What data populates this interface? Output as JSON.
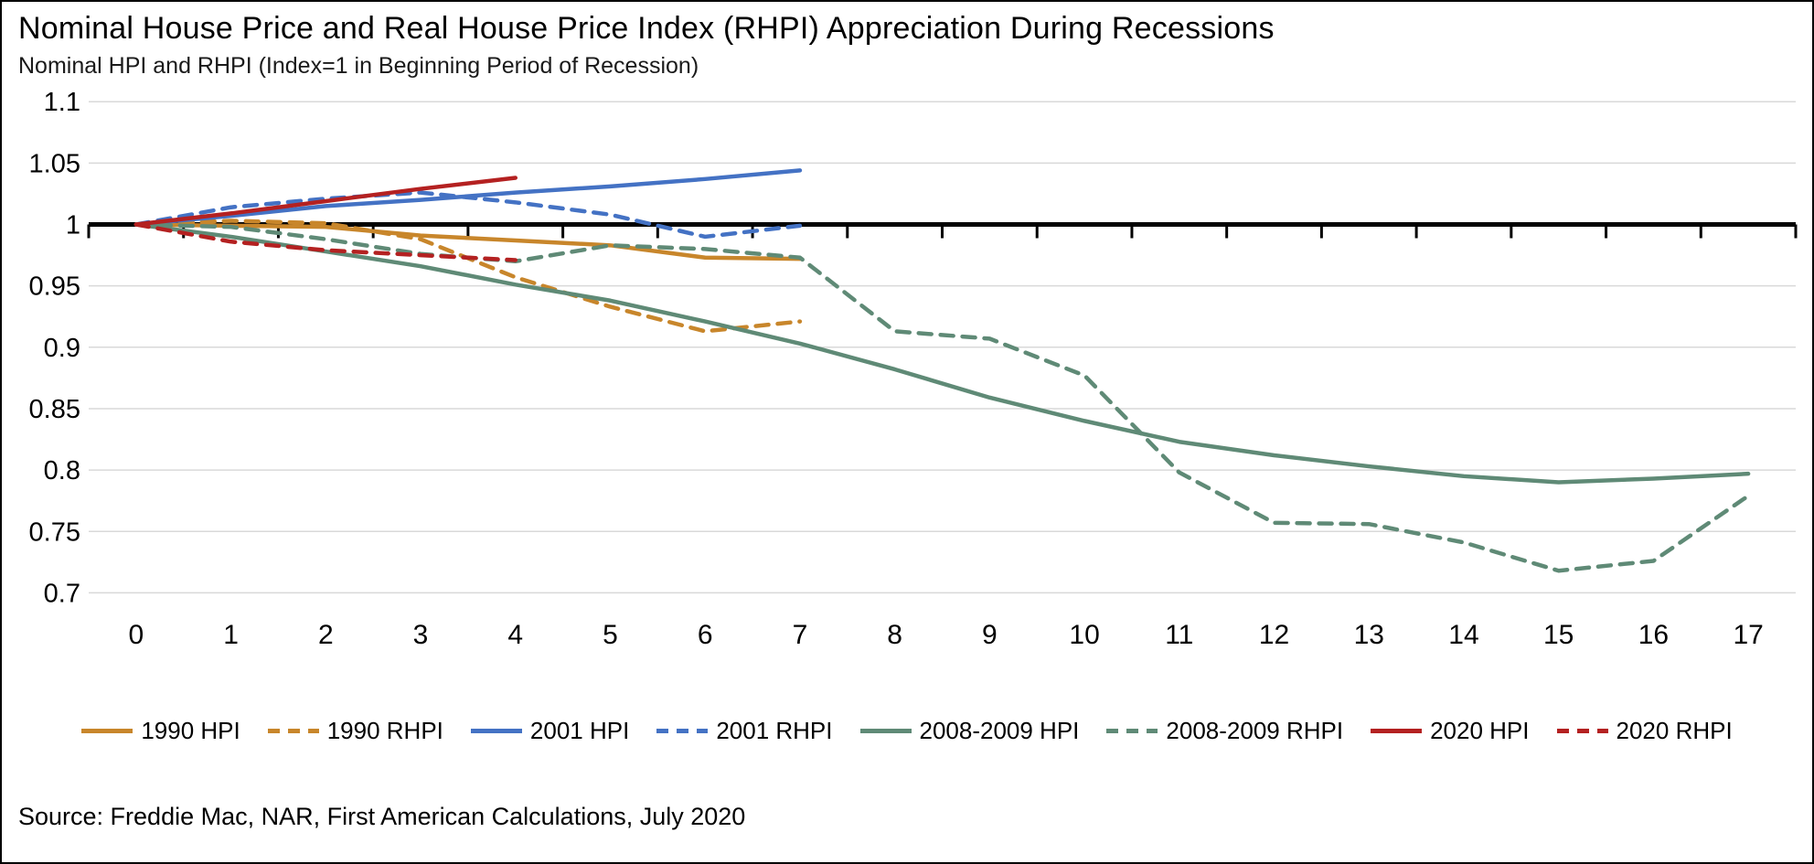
{
  "header": {
    "title": "Nominal House Price and Real House Price Index (RHPI) Appreciation During Recessions",
    "subtitle": "Nominal HPI and RHPI (Index=1 in Beginning Period of Recession)"
  },
  "footer": {
    "source": "Source: Freddie Mac, NAR, First American Calculations, July 2020"
  },
  "chart_data": {
    "type": "line",
    "title": "Nominal House Price and Real House Price Index (RHPI) Appreciation During Recessions",
    "subtitle": "Nominal HPI and RHPI (Index=1 in Beginning Period of Recession)",
    "xlabel": "",
    "ylabel": "",
    "x": [
      0,
      1,
      2,
      3,
      4,
      5,
      6,
      7,
      8,
      9,
      10,
      11,
      12,
      13,
      14,
      15,
      16,
      17
    ],
    "x_tick_labels": [
      "0",
      "1",
      "2",
      "3",
      "4",
      "5",
      "6",
      "7",
      "8",
      "9",
      "10",
      "11",
      "12",
      "13",
      "14",
      "15",
      "16",
      "17"
    ],
    "ylim": [
      0.7,
      1.1
    ],
    "yticks": [
      1.1,
      1.05,
      1.0,
      0.95,
      0.9,
      0.85,
      0.8,
      0.75,
      0.7
    ],
    "ytick_labels": [
      "1.1",
      "1.05",
      "1",
      "0.95",
      "0.9",
      "0.85",
      "0.8",
      "0.75",
      "0.7"
    ],
    "baseline_value": 1,
    "grid": "horizontal",
    "gridline_color": "#d9d9d9",
    "axis_color": "#000000",
    "legend_position": "bottom-center",
    "series": [
      {
        "name": "1990 HPI",
        "color": "#C8862B",
        "dash": "solid",
        "values": [
          1,
          0.999,
          0.998,
          0.991,
          0.987,
          0.983,
          0.973,
          0.972
        ]
      },
      {
        "name": "1990 RHPI",
        "color": "#C8862B",
        "dash": "dashed",
        "values": [
          1,
          1.003,
          1.001,
          0.988,
          0.957,
          0.933,
          0.913,
          0.921
        ]
      },
      {
        "name": "2001 HPI",
        "color": "#4472C4",
        "dash": "solid",
        "values": [
          1,
          1.007,
          1.015,
          1.02,
          1.026,
          1.031,
          1.037,
          1.044
        ]
      },
      {
        "name": "2001 RHPI",
        "color": "#4472C4",
        "dash": "dashed",
        "values": [
          1,
          1.014,
          1.021,
          1.026,
          1.018,
          1.008,
          0.99,
          0.999
        ]
      },
      {
        "name": "2008-2009 HPI",
        "color": "#5F8A76",
        "dash": "solid",
        "values": [
          1,
          0.99,
          0.978,
          0.966,
          0.951,
          0.938,
          0.921,
          0.903,
          0.882,
          0.859,
          0.84,
          0.823,
          0.812,
          0.803,
          0.795,
          0.79,
          0.793,
          0.797
        ]
      },
      {
        "name": "2008-2009 RHPI",
        "color": "#5F8A76",
        "dash": "dashed",
        "values": [
          1,
          0.998,
          0.988,
          0.976,
          0.97,
          0.983,
          0.98,
          0.973,
          0.913,
          0.907,
          0.877,
          0.798,
          0.757,
          0.756,
          0.741,
          0.718,
          0.726,
          0.779
        ]
      },
      {
        "name": "2020 HPI",
        "color": "#B42121",
        "dash": "solid",
        "values": [
          1,
          1.009,
          1.019,
          1.029,
          1.038
        ]
      },
      {
        "name": "2020 RHPI",
        "color": "#B42121",
        "dash": "dashed",
        "values": [
          1,
          0.986,
          0.979,
          0.975,
          0.971
        ]
      }
    ]
  }
}
